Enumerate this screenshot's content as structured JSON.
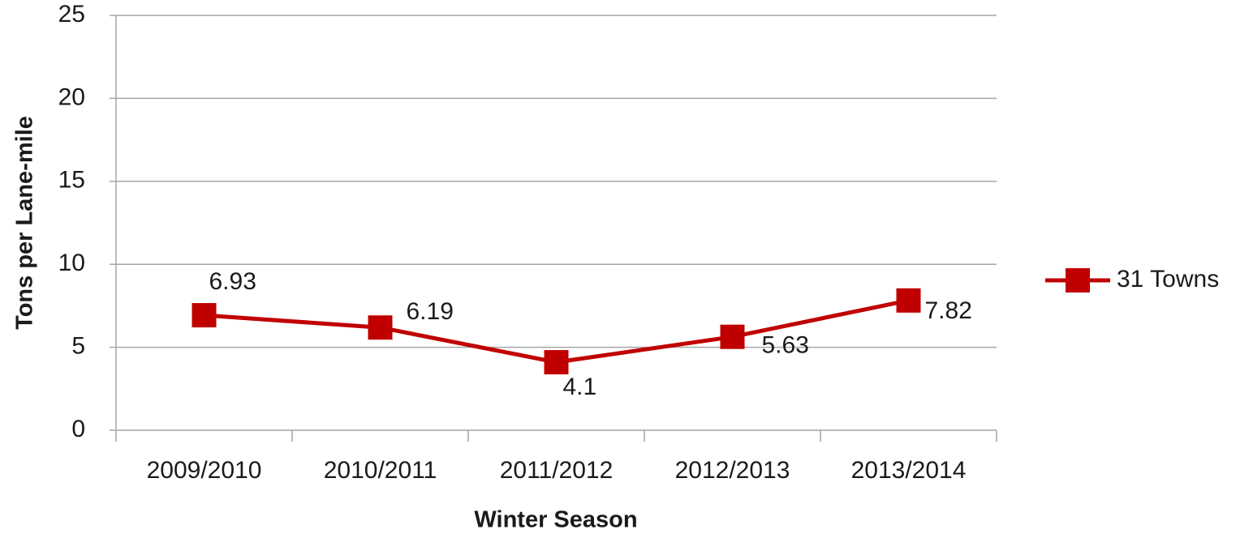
{
  "chart_data": {
    "type": "line",
    "xlabel": "Winter Season",
    "ylabel": "Tons per Lane-mile",
    "categories": [
      "2009/2010",
      "2010/2011",
      "2011/2012",
      "2012/2013",
      "2013/2014"
    ],
    "series": [
      {
        "name": "31 Towns",
        "color": "#c00000",
        "values": [
          6.93,
          6.19,
          4.1,
          5.63,
          7.82
        ]
      }
    ],
    "ylim": [
      0,
      25
    ],
    "yticks": [
      0,
      5,
      10,
      15,
      20,
      25
    ],
    "grid": true,
    "legend": "right",
    "data_labels": true
  }
}
